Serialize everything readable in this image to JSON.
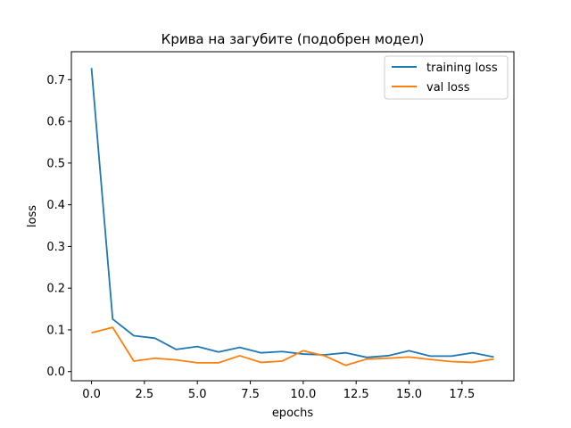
{
  "chart_data": {
    "type": "line",
    "title": "Крива на загубите (подобрен модел)",
    "xlabel": "epochs",
    "ylabel": "loss",
    "xlim": [
      -0.95,
      19.95
    ],
    "ylim": [
      -0.022,
      0.767
    ],
    "x_ticks": [
      0.0,
      2.5,
      5.0,
      7.5,
      10.0,
      12.5,
      15.0,
      17.5
    ],
    "x_tick_labels": [
      "0.0",
      "2.5",
      "5.0",
      "7.5",
      "10.0",
      "12.5",
      "15.0",
      "17.5"
    ],
    "y_ticks": [
      0.0,
      0.1,
      0.2,
      0.3,
      0.4,
      0.5,
      0.6,
      0.7
    ],
    "y_tick_labels": [
      "0.0",
      "0.1",
      "0.2",
      "0.3",
      "0.4",
      "0.5",
      "0.6",
      "0.7"
    ],
    "legend_position": "top-right",
    "grid": false,
    "x": [
      0,
      1,
      2,
      3,
      4,
      5,
      6,
      7,
      8,
      9,
      10,
      11,
      12,
      13,
      14,
      15,
      16,
      17,
      18,
      19
    ],
    "series": [
      {
        "name": "training loss",
        "color": "#1f77b4",
        "values": [
          0.728,
          0.126,
          0.086,
          0.08,
          0.053,
          0.06,
          0.047,
          0.058,
          0.045,
          0.048,
          0.042,
          0.04,
          0.045,
          0.034,
          0.038,
          0.05,
          0.037,
          0.037,
          0.045,
          0.035
        ]
      },
      {
        "name": "val loss",
        "color": "#ff7f0e",
        "values": [
          0.093,
          0.106,
          0.025,
          0.032,
          0.028,
          0.021,
          0.021,
          0.038,
          0.022,
          0.025,
          0.05,
          0.038,
          0.015,
          0.03,
          0.032,
          0.035,
          0.029,
          0.024,
          0.022,
          0.03
        ]
      }
    ]
  }
}
